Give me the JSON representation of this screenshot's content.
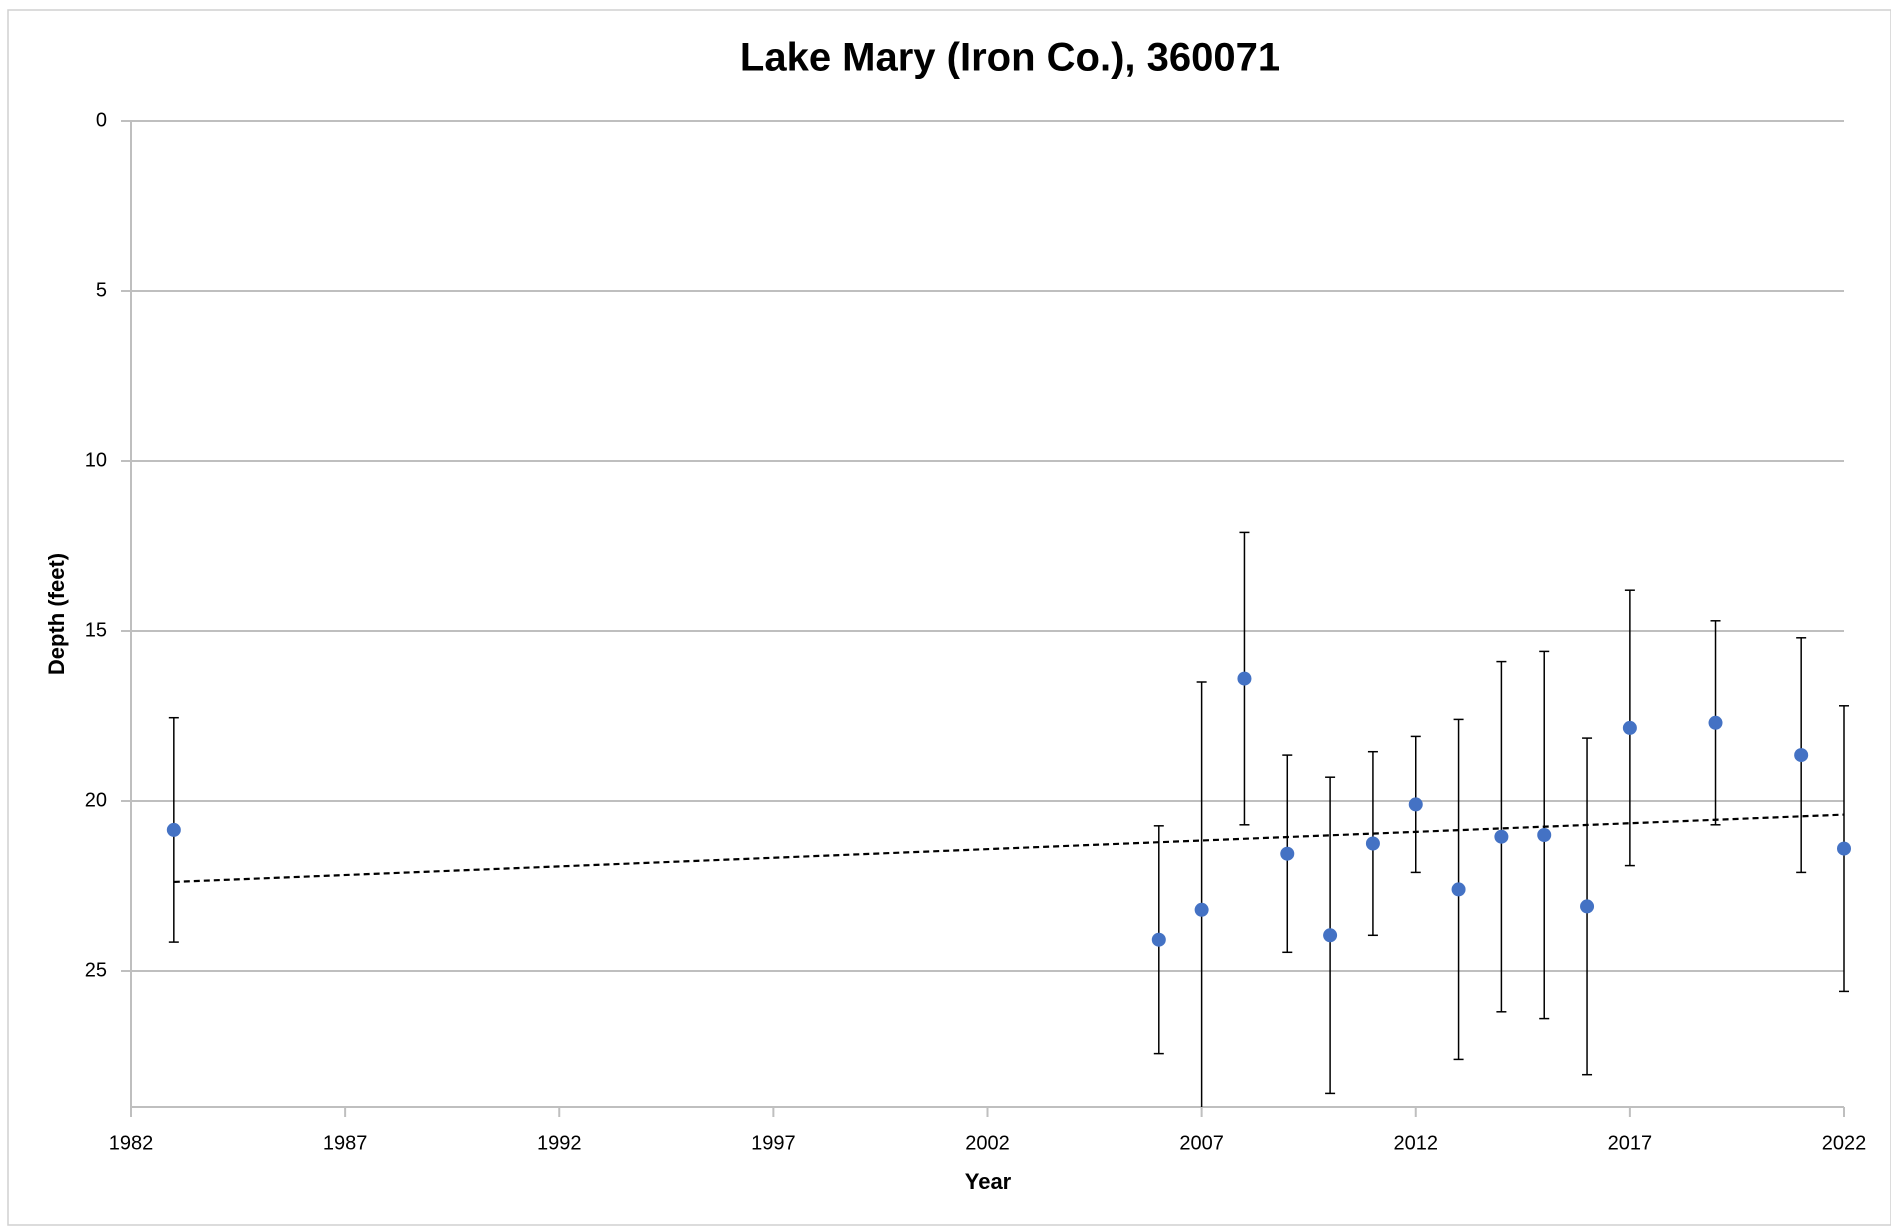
{
  "chart_data": {
    "type": "scatter",
    "title": "Lake Mary (Iron Co.), 360071",
    "x_label": "Year",
    "y_label": "Depth (feet)",
    "xlim": [
      1982,
      2022
    ],
    "xticks": [
      1982,
      1987,
      1992,
      1997,
      2002,
      2007,
      2012,
      2017,
      2022
    ],
    "ylim": [
      0,
      29
    ],
    "yticks": [
      0,
      5,
      10,
      15,
      20,
      25
    ],
    "y_inverted": true,
    "grid": true,
    "series": [
      {
        "color": "#4472c4",
        "error_color": "#000000",
        "x": [
          1983,
          2006,
          2007,
          2008,
          2009,
          2010,
          2011,
          2012,
          2013,
          2014,
          2015,
          2016,
          2017,
          2019,
          2021,
          2022
        ],
        "values": [
          20.85,
          24.08,
          23.2,
          16.4,
          21.55,
          23.95,
          21.25,
          20.1,
          22.6,
          21.05,
          21.0,
          23.1,
          17.85,
          17.7,
          18.65,
          21.4
        ],
        "errors": [
          3.3,
          3.35,
          6.7,
          4.3,
          2.9,
          4.65,
          2.7,
          2.0,
          5.0,
          5.15,
          5.4,
          4.95,
          4.05,
          3.0,
          3.45,
          4.2
        ]
      }
    ],
    "trendline": {
      "color": "#000000",
      "x": [
        1983,
        2022
      ],
      "values": [
        22.38,
        20.4
      ]
    }
  }
}
